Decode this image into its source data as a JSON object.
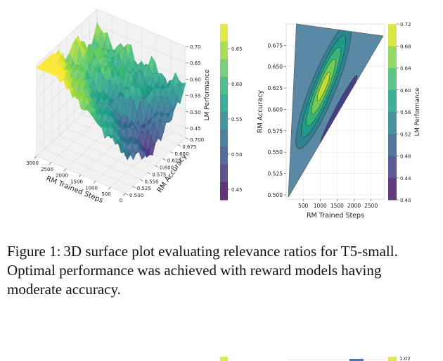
{
  "figure": {
    "label": "Figure 1:",
    "caption": "3D surface plot evaluating relevance ratios for T5-small. Optimal performance was achieved with reward models having moderate accuracy."
  },
  "chart_data": [
    {
      "type": "surface3d",
      "xlabel": "RM Trained Steps",
      "ylabel": "RM Accuracy",
      "zlabel": "LM Performance",
      "x_ticks": [
        "0",
        "500",
        "1000",
        "1500",
        "2000",
        "2500",
        "3000"
      ],
      "y_ticks": [
        "0.500",
        "0.525",
        "0.550",
        "0.575",
        "0.600",
        "0.625",
        "0.650",
        "0.675",
        "0.700"
      ],
      "z_ticks": [
        "0.45",
        "0.50",
        "0.55",
        "0.60",
        "0.65",
        "0.70"
      ],
      "xlim": [
        0,
        3000
      ],
      "ylim": [
        0.5,
        0.7
      ],
      "zlim": [
        0.42,
        0.7
      ],
      "colorbar": {
        "label": "LM Performance",
        "ticks": [
          "0.45",
          "0.50",
          "0.55",
          "0.60",
          "0.65"
        ],
        "range": [
          0.435,
          0.685
        ]
      }
    },
    {
      "type": "contour",
      "xlabel": "RM Trained Steps",
      "ylabel": "RM Accuracy",
      "x_ticks": [
        "500",
        "1000",
        "1500",
        "2000",
        "2500"
      ],
      "y_ticks": [
        "0.500",
        "0.525",
        "0.550",
        "0.575",
        "0.600",
        "0.625",
        "0.650",
        "0.675"
      ],
      "xlim": [
        0,
        2900
      ],
      "ylim": [
        0.495,
        0.7
      ],
      "levels": [
        0.4,
        0.44,
        0.48,
        0.52,
        0.56,
        0.6,
        0.64,
        0.68,
        0.72
      ],
      "colorbar": {
        "label": "LM Performance",
        "ticks": [
          "0.40",
          "0.44",
          "0.48",
          "0.52",
          "0.56",
          "0.60",
          "0.64",
          "0.68",
          "0.72"
        ],
        "range": [
          0.4,
          0.72
        ]
      },
      "peak": {
        "x": 1100,
        "y": 0.63,
        "value": 0.71
      }
    }
  ],
  "next_figure_partial": {
    "colorbar_top_tick": "1.02"
  }
}
